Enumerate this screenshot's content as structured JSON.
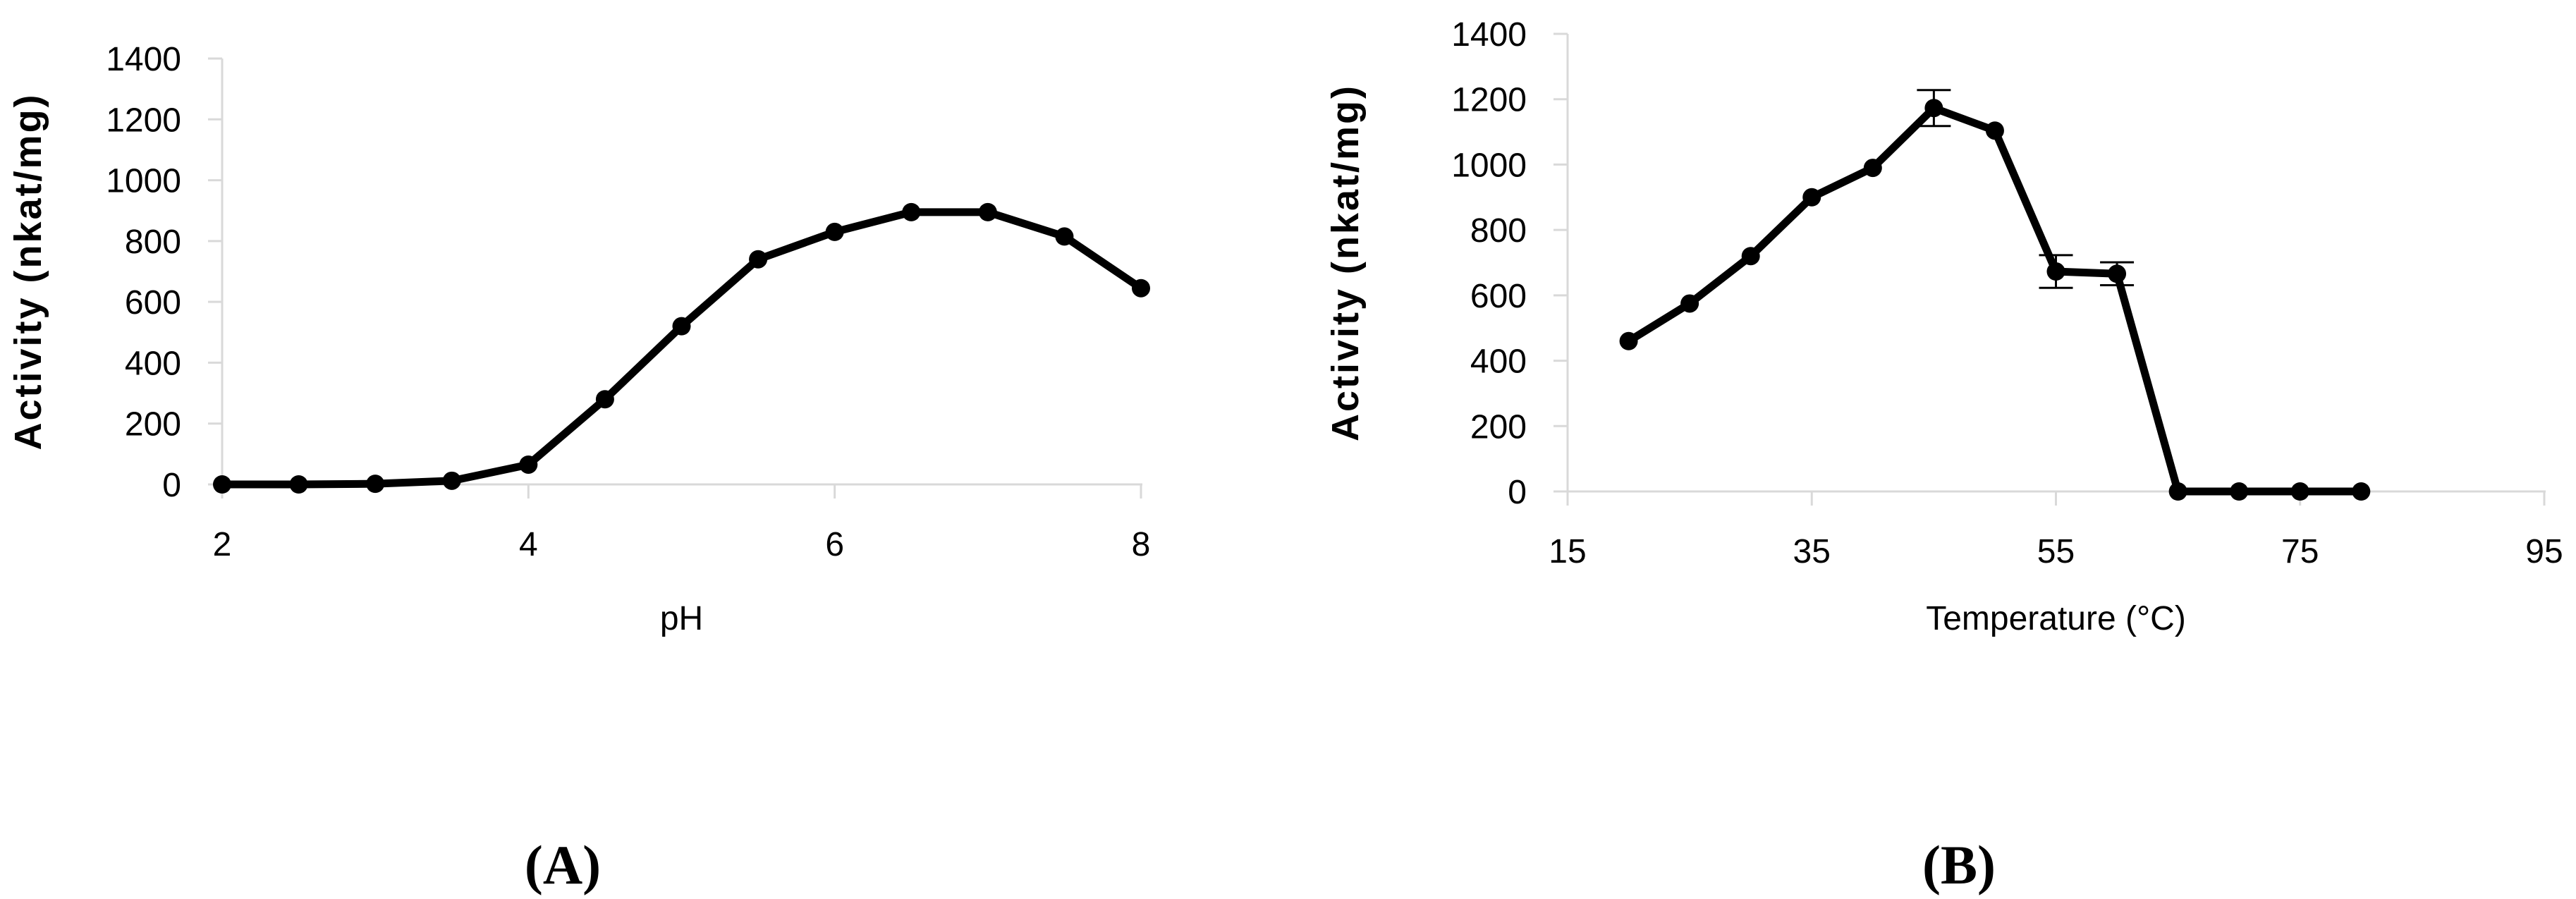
{
  "figure": {
    "description": "Two-panel enzyme activity figure: panel A activity vs pH, panel B activity vs temperature",
    "background": "#ffffff"
  },
  "colors": {
    "series": "#000000",
    "axis": "#D9D9D9",
    "text": "#000000"
  },
  "chart_data": [
    {
      "type": "line",
      "panel_label": "(A)",
      "xlabel": "pH",
      "ylabel": "Activity (nkat/mg)",
      "x": [
        2,
        2.5,
        3,
        3.5,
        4,
        4.5,
        5,
        5.5,
        6,
        6.5,
        7,
        7.5,
        8
      ],
      "y": [
        0,
        0,
        2,
        12,
        65,
        280,
        520,
        740,
        830,
        895,
        895,
        815,
        645
      ],
      "y_err": [
        0,
        0,
        0,
        0,
        0,
        0,
        0,
        0,
        0,
        0,
        0,
        0,
        0
      ],
      "x_ticks": [
        2,
        4,
        6,
        8
      ],
      "y_ticks": [
        0,
        200,
        400,
        600,
        800,
        1000,
        1200,
        1400
      ],
      "xlim": [
        2,
        8
      ],
      "ylim": [
        0,
        1400
      ],
      "grid": false,
      "legend": "none",
      "marker": "circle",
      "line_color": "#000000"
    },
    {
      "type": "line",
      "panel_label": "(B)",
      "xlabel": "Temperature (°C)",
      "ylabel": "Activity (nkat/mg)",
      "x": [
        20,
        25,
        30,
        35,
        40,
        45,
        50,
        55,
        60,
        65,
        70,
        75,
        80
      ],
      "y": [
        460,
        575,
        720,
        900,
        990,
        1173,
        1104,
        673,
        666,
        0,
        0,
        0,
        0
      ],
      "y_err": [
        0,
        0,
        0,
        0,
        0,
        55,
        0,
        50,
        35,
        0,
        0,
        0,
        0
      ],
      "x_ticks": [
        15,
        35,
        55,
        75,
        95
      ],
      "y_ticks": [
        0,
        200,
        400,
        600,
        800,
        1000,
        1200,
        1400
      ],
      "xlim": [
        15,
        95
      ],
      "ylim": [
        0,
        1400
      ],
      "grid": false,
      "legend": "none",
      "marker": "circle",
      "line_color": "#000000"
    }
  ]
}
